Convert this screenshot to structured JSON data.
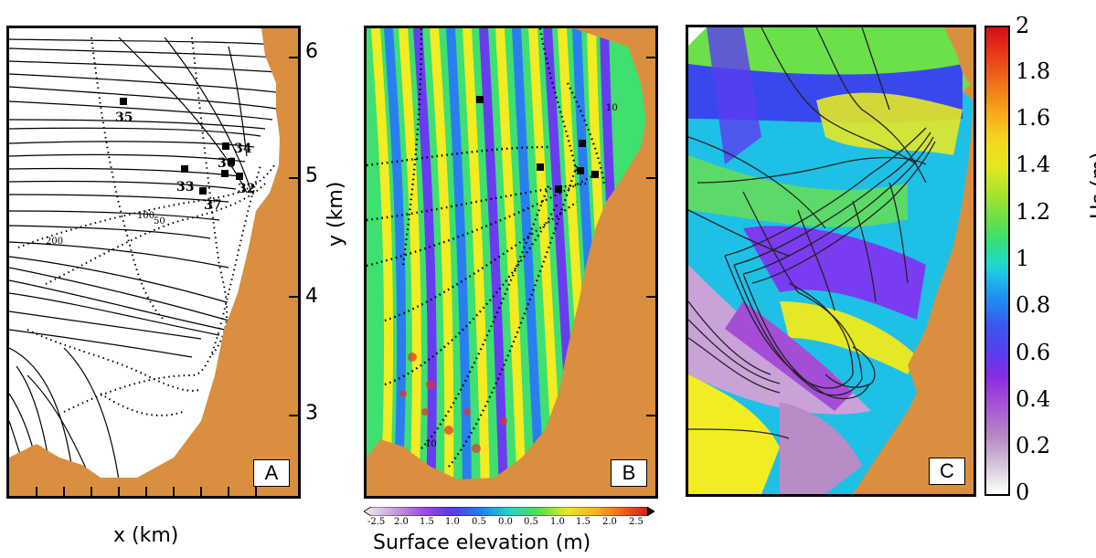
{
  "panels": {
    "a": {
      "label": "A"
    },
    "b": {
      "label": "B"
    },
    "c": {
      "label": "C"
    }
  },
  "y_axis": {
    "label": "y (km)",
    "ticks": [
      "6",
      "5",
      "4",
      "3"
    ]
  },
  "x_axis": {
    "label": "x (km)"
  },
  "stations": [
    "35",
    "34",
    "36",
    "33",
    "32",
    "37"
  ],
  "contour_labels": [
    "100",
    "50",
    "200",
    "10",
    "10"
  ],
  "surface_colorbar": {
    "label": "Surface elevation (m)",
    "ticks": [
      "-2.5",
      "2.0",
      "1.5",
      "1.0",
      "0.5",
      "0.0",
      "0.5",
      "1.0",
      "1.5",
      "2.0",
      "2.5"
    ]
  },
  "hs_colorbar": {
    "label": "Hs (m)",
    "ticks": [
      "2",
      "1.8",
      "1.6",
      "1.4",
      "1.2",
      "1",
      "0.8",
      "0.6",
      "0.4",
      "0.2",
      "0"
    ]
  },
  "colors": {
    "land": "#d98f3f",
    "frame": "#000000"
  }
}
